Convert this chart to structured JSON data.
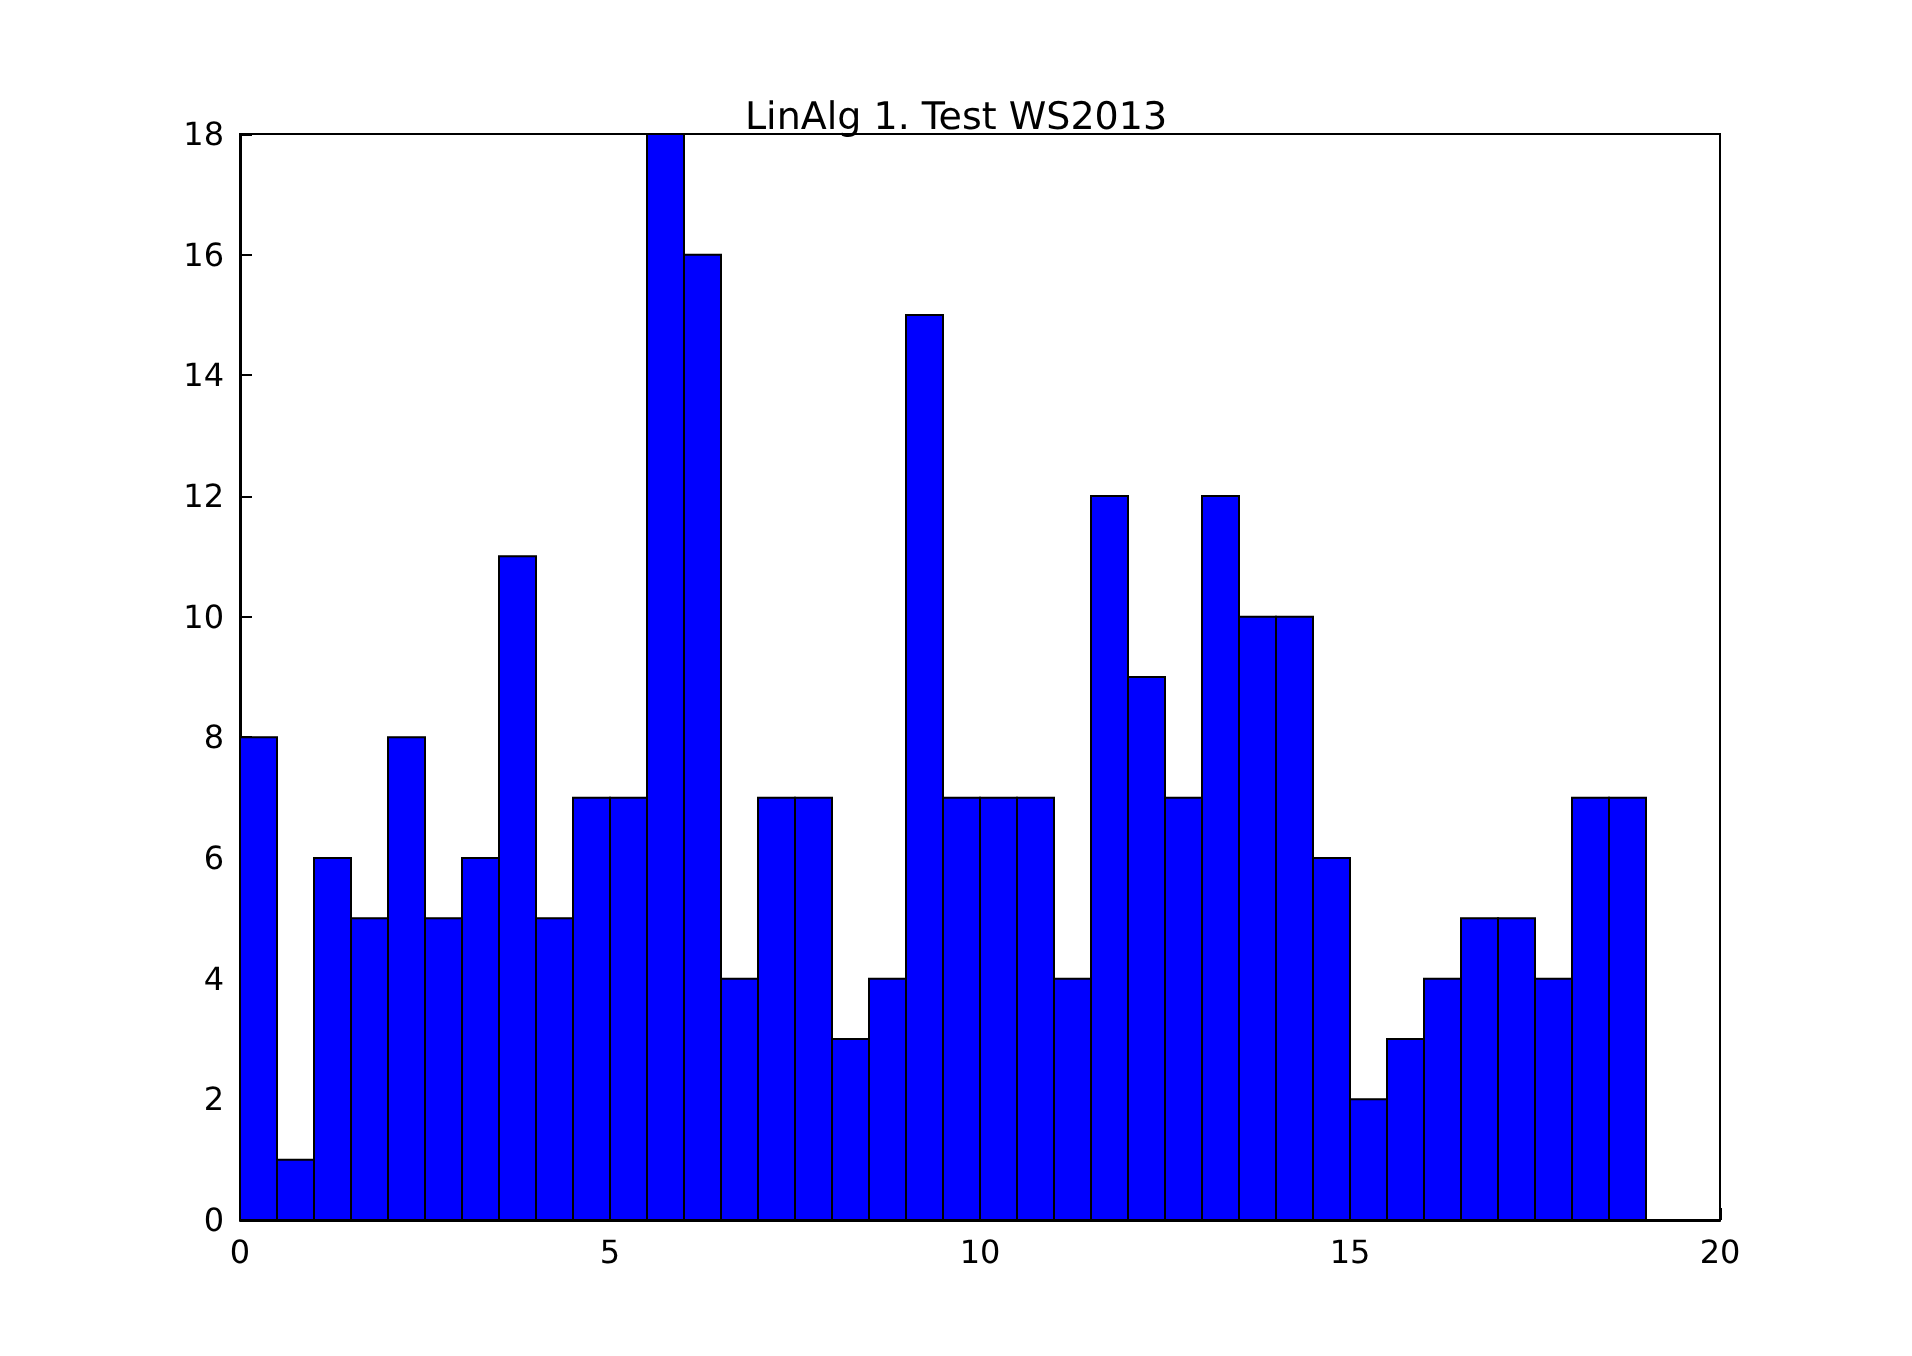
{
  "chart_data": {
    "type": "histogram",
    "title": "LinAlg 1. Test WS2013",
    "bins": [
      0,
      0.5,
      1,
      1.5,
      2,
      2.5,
      3,
      3.5,
      4,
      4.5,
      5,
      5.5,
      6,
      6.5,
      7,
      7.5,
      8,
      8.5,
      9,
      9.5,
      10,
      10.5,
      11,
      11.5,
      12,
      12.5,
      13,
      13.5,
      14,
      14.5,
      15,
      15.5,
      16,
      16.5,
      17,
      17.5,
      18,
      18.5,
      19
    ],
    "values": [
      8,
      1,
      6,
      5,
      8,
      5,
      6,
      11,
      5,
      7,
      7,
      18,
      16,
      4,
      7,
      7,
      3,
      4,
      15,
      7,
      7,
      7,
      4,
      12,
      9,
      7,
      12,
      10,
      10,
      6,
      2,
      3,
      4,
      5,
      5,
      4,
      7,
      7
    ],
    "color": "#0000ff",
    "xlim": [
      0,
      20
    ],
    "xticks": [
      0,
      5,
      10,
      15,
      20
    ],
    "ylim": [
      0,
      18
    ],
    "yticks": [
      0,
      2,
      4,
      6,
      8,
      10,
      12,
      14,
      16,
      18
    ]
  }
}
